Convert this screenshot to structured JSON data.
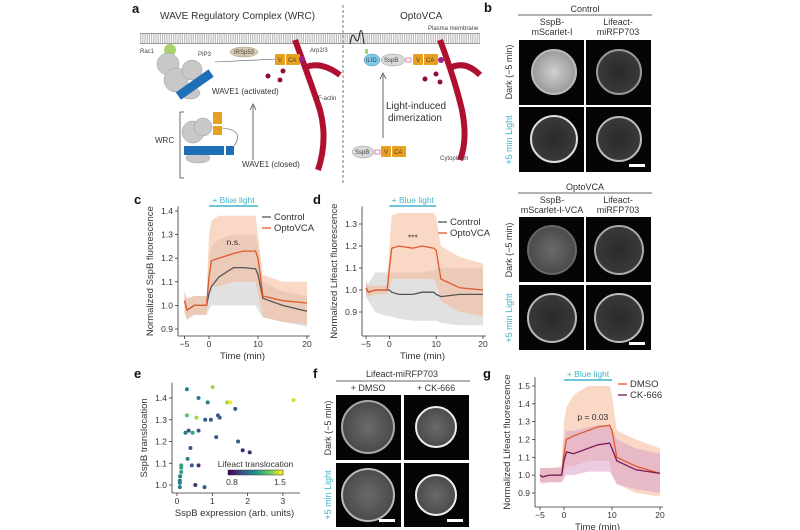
{
  "panel_letters": {
    "a": "a",
    "b": "b",
    "c": "c",
    "d": "d",
    "e": "e",
    "f": "f",
    "g": "g"
  },
  "diagram": {
    "title_wrc": "WAVE Regulatory Complex (WRC)",
    "title_opto": "OptoVCA",
    "plasma_membrane": "Plasma membrane",
    "cytoplasm": "Cytoplasm",
    "rac1": "Rac1",
    "pip3": "PIP3",
    "irsp53": "IRSp53",
    "arp23": "Arp2/3",
    "v": "V",
    "ca": "CA",
    "f_actin": "F-actin",
    "wave1_activated": "WAVE1 (activated)",
    "wave1_closed": "WAVE1 (closed)",
    "wrc": "WRC",
    "ilid": "iLID",
    "sspb": "SspB",
    "light_line1": "Light-induced",
    "light_line2": "dimerization"
  },
  "panel_b": {
    "control_header": "Control",
    "opto_header": "OptoVCA",
    "col_sspb_1": "SspB-",
    "col_sspb_2": "mScarlet-I",
    "opto_col_sspb_2": "mScarlet-I-VCA",
    "col_lifeact_1": "Lifeact-",
    "col_lifeact_2": "miRFP703",
    "row_dark": "Dark (−5 min)",
    "row_light": "+5 min Light"
  },
  "panel_f": {
    "header": "Lifeact-miRFP703",
    "col_dmso": "+ DMSO",
    "col_ck": "+ CK-666",
    "row_dark": "Dark (−5 min)",
    "row_light": "+5 min Light"
  },
  "colors": {
    "light_cyan": "#3fb4c8",
    "orange": "#e05a2a",
    "gray": "#555555",
    "purple": "#7a1a5a",
    "actin": "#b01030",
    "domain_orange": "#e8a020",
    "wave_blue": "#1f6fb8"
  },
  "chart_data": [
    {
      "panel": "c",
      "type": "line",
      "xlabel": "Time (min)",
      "ylabel": "Normalized SspB fluorescence",
      "xlim": [
        -5,
        20
      ],
      "ylim": [
        0.88,
        1.42
      ],
      "xticks": [
        -5,
        0,
        10,
        20
      ],
      "yticks": [
        0.9,
        1.0,
        1.1,
        1.2,
        1.3,
        1.4
      ],
      "stimulus": {
        "label": "+ Blue light",
        "start": 0,
        "end": 10
      },
      "annotation": {
        "text": "n.s.",
        "x": 5,
        "y": 1.255
      },
      "x": [
        -5,
        -4.5,
        -3,
        -0.5,
        0,
        0.5,
        2,
        5,
        7,
        9.5,
        10,
        11,
        15,
        20
      ],
      "series": [
        {
          "name": "Control",
          "color": "#555555",
          "band_color": "#c8c8c8",
          "values": [
            1.02,
            0.98,
            1.0,
            1.0,
            1.05,
            1.08,
            1.12,
            1.16,
            1.16,
            1.155,
            1.13,
            1.03,
            1.0,
            0.975
          ],
          "lower": [
            0.97,
            0.94,
            0.96,
            0.96,
            0.98,
            1.0,
            1.0,
            1.0,
            1.0,
            1.0,
            0.98,
            0.95,
            0.93,
            0.91
          ],
          "upper": [
            1.06,
            1.03,
            1.04,
            1.04,
            1.2,
            1.25,
            1.28,
            1.3,
            1.3,
            1.3,
            1.25,
            1.1,
            1.06,
            1.04
          ]
        },
        {
          "name": "OptoVCA",
          "color": "#e05a2a",
          "band_color": "#f6b898",
          "values": [
            1.02,
            0.98,
            1.0,
            1.0,
            1.12,
            1.19,
            1.2,
            1.22,
            1.23,
            1.23,
            1.2,
            1.04,
            1.02,
            1.01
          ],
          "lower": [
            0.97,
            0.94,
            0.96,
            0.96,
            1.05,
            1.08,
            1.08,
            1.1,
            1.1,
            1.1,
            1.05,
            0.95,
            0.93,
            0.92
          ],
          "upper": [
            1.06,
            1.03,
            1.04,
            1.04,
            1.3,
            1.36,
            1.38,
            1.38,
            1.38,
            1.38,
            1.3,
            1.13,
            1.1,
            1.1
          ]
        }
      ]
    },
    {
      "panel": "d",
      "type": "line",
      "xlabel": "Time (min)",
      "ylabel": "Normalized Lifeact fluorescence",
      "xlim": [
        -5,
        20
      ],
      "ylim": [
        0.8,
        1.38
      ],
      "xticks": [
        -5,
        0,
        10,
        20
      ],
      "yticks": [
        0.9,
        1.0,
        1.1,
        1.2,
        1.3
      ],
      "stimulus": {
        "label": "+ Blue light",
        "start": 0,
        "end": 10
      },
      "annotation": {
        "text": "***",
        "x": 5,
        "y": 1.225
      },
      "x": [
        -5,
        -4.5,
        -3,
        -0.5,
        0,
        0.5,
        2,
        5,
        7,
        9.5,
        10,
        11,
        15,
        20
      ],
      "series": [
        {
          "name": "Control",
          "color": "#555555",
          "band_color": "#c8c8c8",
          "values": [
            1.01,
            0.99,
            1.0,
            1.0,
            1.0,
            0.99,
            0.98,
            0.98,
            0.99,
            0.99,
            0.98,
            0.97,
            0.98,
            0.98
          ],
          "lower": [
            0.97,
            0.95,
            0.9,
            0.88,
            0.88,
            0.88,
            0.87,
            0.86,
            0.86,
            0.86,
            0.86,
            0.85,
            0.84,
            0.84
          ],
          "upper": [
            1.04,
            1.03,
            1.08,
            1.08,
            1.08,
            1.08,
            1.08,
            1.08,
            1.08,
            1.09,
            1.1,
            1.1,
            1.1,
            1.1
          ]
        },
        {
          "name": "OptoVCA",
          "color": "#e05a2a",
          "band_color": "#f6b898",
          "values": [
            1.01,
            0.99,
            1.0,
            1.0,
            1.1,
            1.19,
            1.2,
            1.19,
            1.2,
            1.19,
            1.18,
            1.05,
            1.01,
            1.0
          ],
          "lower": [
            0.98,
            0.97,
            0.98,
            0.98,
            1.0,
            1.05,
            1.05,
            1.05,
            1.05,
            1.05,
            1.03,
            0.95,
            0.9,
            0.88
          ],
          "upper": [
            1.03,
            1.02,
            1.02,
            1.02,
            1.2,
            1.34,
            1.35,
            1.35,
            1.35,
            1.35,
            1.33,
            1.2,
            1.15,
            1.12
          ]
        }
      ]
    },
    {
      "panel": "e",
      "type": "scatter",
      "xlabel": "SspB expression (arb. units)",
      "ylabel": "SspB translocation",
      "xlim": [
        0,
        3.4
      ],
      "ylim": [
        0.97,
        1.47
      ],
      "xticks": [
        0,
        1,
        2,
        3
      ],
      "yticks": [
        1.0,
        1.1,
        1.2,
        1.3,
        1.4
      ],
      "colorbar": {
        "label": "Lifeact translocation",
        "min": 0.8,
        "max": 1.5,
        "colormap": "viridis"
      },
      "points": [
        [
          0.28,
          1.44,
          1.1
        ],
        [
          1.01,
          1.45,
          1.4
        ],
        [
          0.61,
          1.4,
          1.1
        ],
        [
          0.87,
          1.38,
          1.1
        ],
        [
          1.42,
          1.38,
          1.4
        ],
        [
          1.51,
          1.38,
          1.5
        ],
        [
          3.3,
          1.39,
          1.45
        ],
        [
          1.65,
          1.35,
          1.0
        ],
        [
          1.16,
          1.32,
          1.0
        ],
        [
          1.21,
          1.31,
          1.0
        ],
        [
          0.28,
          1.32,
          1.3
        ],
        [
          0.55,
          1.31,
          1.4
        ],
        [
          0.8,
          1.3,
          1.0
        ],
        [
          0.96,
          1.3,
          1.0
        ],
        [
          0.33,
          1.25,
          1.0
        ],
        [
          0.44,
          1.24,
          1.2
        ],
        [
          0.61,
          1.25,
          1.0
        ],
        [
          0.24,
          1.24,
          1.1
        ],
        [
          1.11,
          1.22,
          1.0
        ],
        [
          1.73,
          1.2,
          1.0
        ],
        [
          0.38,
          1.17,
          1.0
        ],
        [
          1.86,
          1.16,
          0.9
        ],
        [
          2.06,
          1.15,
          0.9
        ],
        [
          0.3,
          1.12,
          1.1
        ],
        [
          0.42,
          1.09,
          1.0
        ],
        [
          0.61,
          1.09,
          0.9
        ],
        [
          0.12,
          1.09,
          1.2
        ],
        [
          0.12,
          1.08,
          1.2
        ],
        [
          0.12,
          1.06,
          1.2
        ],
        [
          0.09,
          1.04,
          1.1
        ],
        [
          0.08,
          1.02,
          1.1
        ],
        [
          0.08,
          1.01,
          1.1
        ],
        [
          0.52,
          1.0,
          0.9
        ],
        [
          0.78,
          0.99,
          1.0
        ],
        [
          0.08,
          0.99,
          1.1
        ]
      ]
    },
    {
      "panel": "g",
      "type": "line",
      "xlabel": "Time (min)",
      "ylabel": "Normalized Lifeact fluorescence",
      "xlim": [
        -5,
        20
      ],
      "ylim": [
        0.83,
        1.55
      ],
      "xticks": [
        -5,
        0,
        10,
        20
      ],
      "yticks": [
        0.9,
        1.0,
        1.1,
        1.2,
        1.3,
        1.4,
        1.5
      ],
      "stimulus": {
        "label": "+ Blue light",
        "start": 0,
        "end": 10
      },
      "annotation": {
        "text": "p = 0.03",
        "x": 6,
        "y": 1.31
      },
      "x": [
        -5,
        -4.5,
        -3,
        -0.5,
        0,
        0.5,
        2,
        5,
        7,
        9.5,
        10,
        11,
        15,
        20
      ],
      "series": [
        {
          "name": "DMSO",
          "color": "#e05a2a",
          "band_color": "#f6b898",
          "values": [
            1.0,
            0.99,
            1.0,
            1.0,
            1.12,
            1.2,
            1.22,
            1.25,
            1.27,
            1.28,
            1.25,
            1.1,
            1.05,
            1.01
          ],
          "lower": [
            0.96,
            0.95,
            0.96,
            0.96,
            1.0,
            1.05,
            1.05,
            1.08,
            1.08,
            1.08,
            1.0,
            0.95,
            0.9,
            0.88
          ],
          "upper": [
            1.04,
            1.04,
            1.04,
            1.05,
            1.3,
            1.38,
            1.45,
            1.5,
            1.5,
            1.5,
            1.45,
            1.25,
            1.2,
            1.15
          ]
        },
        {
          "name": "CK-666",
          "color": "#7a1a5a",
          "band_color": "#d9a0c8",
          "values": [
            1.0,
            0.99,
            1.0,
            1.0,
            1.08,
            1.13,
            1.12,
            1.15,
            1.17,
            1.18,
            1.15,
            1.08,
            1.03,
            1.01
          ],
          "lower": [
            0.96,
            0.96,
            0.96,
            0.96,
            0.98,
            1.0,
            1.0,
            1.02,
            1.02,
            1.02,
            1.0,
            0.95,
            0.92,
            0.9
          ],
          "upper": [
            1.04,
            1.04,
            1.04,
            1.04,
            1.2,
            1.25,
            1.25,
            1.27,
            1.28,
            1.28,
            1.26,
            1.2,
            1.15,
            1.12
          ]
        }
      ]
    }
  ]
}
